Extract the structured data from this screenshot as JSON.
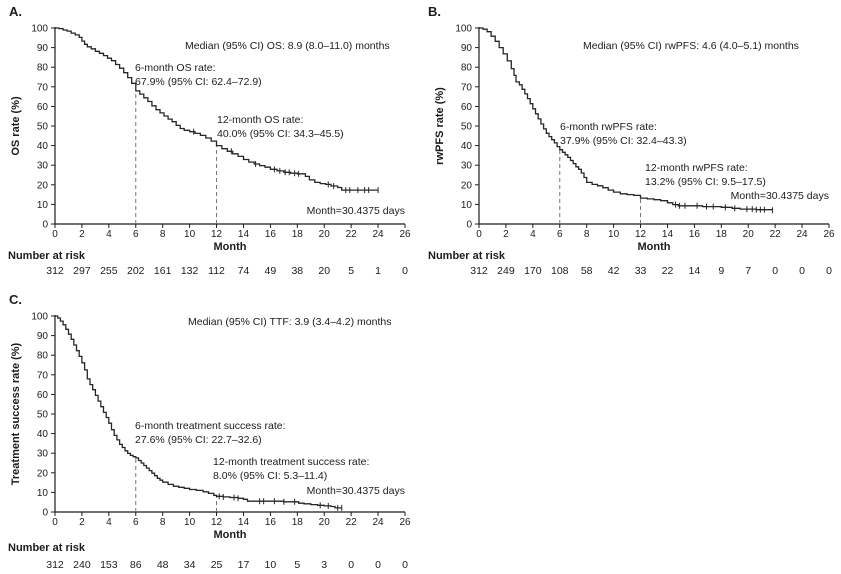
{
  "figure": {
    "colors": {
      "ink": "#1c1c1c",
      "curve": "#262626",
      "dash": "#757575"
    }
  },
  "chart_data": [
    {
      "type": "line",
      "panel_label": "A.",
      "ylabel": "OS rate (%)",
      "xlabel": "Month",
      "xlim": [
        0,
        26
      ],
      "ylim": [
        0,
        100
      ],
      "xtick_step": 2,
      "ytick_step": 10,
      "annotations": {
        "median": "Median (95% CI) OS: 8.9 (8.0–11.0) months",
        "rate6_line1": "6-month OS rate:",
        "rate6_line2": "67.9% (95% CI: 62.4–72.9)",
        "rate12_line1": "12-month OS rate:",
        "rate12_line2": "40.0% (95% CI: 34.3–45.5)",
        "month_note": "Month=30.4375 days"
      },
      "dashed_refs": [
        {
          "x": 6,
          "y_top": 67.9
        },
        {
          "x": 12,
          "y_top": 40.0
        }
      ],
      "at_risk_header": "Number at risk",
      "at_risk": [
        312,
        297,
        255,
        202,
        161,
        132,
        112,
        74,
        49,
        38,
        20,
        5,
        1,
        0
      ],
      "steps": [
        [
          0,
          100
        ],
        [
          0.3,
          99.7
        ],
        [
          0.6,
          99
        ],
        [
          0.9,
          98.4
        ],
        [
          1.2,
          97.4
        ],
        [
          1.5,
          96.5
        ],
        [
          1.8,
          95.2
        ],
        [
          2,
          93.3
        ],
        [
          2.2,
          91.7
        ],
        [
          2.4,
          90.4
        ],
        [
          2.7,
          89.4
        ],
        [
          3,
          88.1
        ],
        [
          3.3,
          87.1
        ],
        [
          3.6,
          85.9
        ],
        [
          3.9,
          84.6
        ],
        [
          4.2,
          83.3
        ],
        [
          4.5,
          81.4
        ],
        [
          4.8,
          79.5
        ],
        [
          5.1,
          77.2
        ],
        [
          5.4,
          74.7
        ],
        [
          5.7,
          71.8
        ],
        [
          6,
          67.9
        ],
        [
          6.3,
          66.3
        ],
        [
          6.6,
          64.4
        ],
        [
          6.9,
          62.5
        ],
        [
          7.2,
          60.3
        ],
        [
          7.5,
          58.3
        ],
        [
          7.8,
          56.7
        ],
        [
          8.1,
          55.1
        ],
        [
          8.4,
          53.5
        ],
        [
          8.7,
          52.2
        ],
        [
          9,
          50.3
        ],
        [
          9.3,
          48.7
        ],
        [
          9.6,
          47.8
        ],
        [
          10,
          47.1
        ],
        [
          10.4,
          46.2
        ],
        [
          10.8,
          45.2
        ],
        [
          11.2,
          43.9
        ],
        [
          11.6,
          42.3
        ],
        [
          12,
          40
        ],
        [
          12.4,
          38.4
        ],
        [
          12.8,
          37.1
        ],
        [
          13.2,
          35.8
        ],
        [
          13.6,
          34.5
        ],
        [
          14,
          32.9
        ],
        [
          14.4,
          31.6
        ],
        [
          14.8,
          30.6
        ],
        [
          15.2,
          29.8
        ],
        [
          15.6,
          29
        ],
        [
          16,
          27.9
        ],
        [
          16.5,
          27.1
        ],
        [
          17,
          26.4
        ],
        [
          17.5,
          25.9
        ],
        [
          18,
          25.6
        ],
        [
          18.6,
          24.3
        ],
        [
          18.9,
          22.5
        ],
        [
          19.3,
          21.2
        ],
        [
          19.7,
          20.6
        ],
        [
          20.1,
          20.2
        ],
        [
          20.5,
          19.4
        ],
        [
          21,
          18.6
        ],
        [
          21.3,
          17.3
        ],
        [
          24,
          17.3
        ]
      ],
      "censors": [
        10.3,
        13.1,
        14.9,
        16.3,
        16.7,
        17.1,
        17.4,
        17.8,
        18.1,
        20.3,
        20.7,
        21.6,
        21.9,
        22.5,
        23,
        23.3,
        24
      ]
    },
    {
      "type": "line",
      "panel_label": "B.",
      "ylabel": "rwPFS rate (%)",
      "xlabel": "Month",
      "xlim": [
        0,
        26
      ],
      "ylim": [
        0,
        100
      ],
      "xtick_step": 2,
      "ytick_step": 10,
      "annotations": {
        "median": "Median (95% CI) rwPFS: 4.6 (4.0–5.1) months",
        "rate6_line1": "6-month rwPFS rate:",
        "rate6_line2": "37.9% (95% CI: 32.4–43.3)",
        "rate12_line1": "12-month rwPFS rate:",
        "rate12_line2": "13.2% (95% CI: 9.5–17.5)",
        "month_note": "Month=30.4375 days"
      },
      "dashed_refs": [
        {
          "x": 6,
          "y_top": 37.9
        },
        {
          "x": 12,
          "y_top": 13.2
        }
      ],
      "at_risk_header": "Number at risk",
      "at_risk": [
        312,
        249,
        170,
        108,
        58,
        42,
        33,
        22,
        14,
        9,
        7,
        0,
        0,
        0
      ],
      "steps": [
        [
          0,
          100
        ],
        [
          0.3,
          99.4
        ],
        [
          0.6,
          98.1
        ],
        [
          0.9,
          95.8
        ],
        [
          1.2,
          93.2
        ],
        [
          1.5,
          90
        ],
        [
          1.8,
          86.8
        ],
        [
          2.1,
          83.2
        ],
        [
          2.4,
          79.3
        ],
        [
          2.6,
          75.8
        ],
        [
          2.75,
          72.5
        ],
        [
          3,
          71
        ],
        [
          3.2,
          68.7
        ],
        [
          3.4,
          66.4
        ],
        [
          3.6,
          64
        ],
        [
          3.8,
          61.4
        ],
        [
          4,
          58.8
        ],
        [
          4.2,
          56.2
        ],
        [
          4.4,
          53.6
        ],
        [
          4.6,
          51
        ],
        [
          4.8,
          48.5
        ],
        [
          5,
          46.3
        ],
        [
          5.2,
          44.6
        ],
        [
          5.4,
          43
        ],
        [
          5.6,
          41.4
        ],
        [
          5.8,
          39.5
        ],
        [
          6,
          37.9
        ],
        [
          6.2,
          36.6
        ],
        [
          6.4,
          35.3
        ],
        [
          6.6,
          34
        ],
        [
          6.8,
          32.4
        ],
        [
          7,
          30.8
        ],
        [
          7.2,
          29.2
        ],
        [
          7.4,
          27.9
        ],
        [
          7.6,
          26
        ],
        [
          7.8,
          23.7
        ],
        [
          8,
          21.2
        ],
        [
          8.4,
          20.2
        ],
        [
          8.8,
          19.5
        ],
        [
          9.2,
          18.5
        ],
        [
          9.6,
          17.3
        ],
        [
          10,
          16.3
        ],
        [
          10.5,
          15.4
        ],
        [
          11,
          15
        ],
        [
          11.5,
          14.6
        ],
        [
          12,
          13.2
        ],
        [
          12.5,
          12.8
        ],
        [
          13,
          12.4
        ],
        [
          13.5,
          11.9
        ],
        [
          14,
          10.8
        ],
        [
          14.4,
          9.9
        ],
        [
          14.8,
          9.3
        ],
        [
          16,
          9.3
        ],
        [
          16.6,
          8.9
        ],
        [
          17.4,
          8.9
        ],
        [
          18,
          8.5
        ],
        [
          18.8,
          8
        ],
        [
          19.4,
          7.6
        ],
        [
          20.6,
          7.3
        ],
        [
          21.8,
          7
        ]
      ],
      "censors": [
        14.6,
        14.9,
        15.3,
        16.2,
        16.9,
        17.4,
        18.3,
        19,
        19.9,
        20.3,
        20.6,
        20.9,
        21.2,
        21.8
      ]
    },
    {
      "type": "line",
      "panel_label": "C.",
      "ylabel": "Treatment success rate (%)",
      "xlabel": "Month",
      "xlim": [
        0,
        26
      ],
      "ylim": [
        0,
        100
      ],
      "xtick_step": 2,
      "ytick_step": 10,
      "annotations": {
        "median": "Median (95% CI) TTF: 3.9 (3.4–4.2) months",
        "rate6_line1": "6-month treatment success rate:",
        "rate6_line2": "27.6% (95% CI: 22.7–32.6)",
        "rate12_line1": "12-month treatment success rate:",
        "rate12_line2": "8.0% (95% CI: 5.3–11.4)",
        "month_note": "Month=30.4375 days"
      },
      "dashed_refs": [
        {
          "x": 6,
          "y_top": 27.6
        },
        {
          "x": 12,
          "y_top": 8.0
        }
      ],
      "at_risk_header": "Number at risk",
      "at_risk": [
        312,
        240,
        153,
        86,
        48,
        34,
        25,
        17,
        10,
        5,
        3,
        0,
        0,
        0
      ],
      "steps": [
        [
          0,
          100
        ],
        [
          0.2,
          99
        ],
        [
          0.4,
          97.4
        ],
        [
          0.6,
          95.5
        ],
        [
          0.8,
          93.2
        ],
        [
          1,
          90.7
        ],
        [
          1.2,
          88.1
        ],
        [
          1.4,
          85.2
        ],
        [
          1.6,
          82.3
        ],
        [
          1.8,
          79.4
        ],
        [
          2,
          76.1
        ],
        [
          2.2,
          72.5
        ],
        [
          2.4,
          67.9
        ],
        [
          2.6,
          65
        ],
        [
          2.8,
          62.4
        ],
        [
          3,
          59.5
        ],
        [
          3.2,
          56.6
        ],
        [
          3.4,
          53.7
        ],
        [
          3.6,
          50.8
        ],
        [
          3.8,
          48.2
        ],
        [
          4,
          45.3
        ],
        [
          4.2,
          42
        ],
        [
          4.4,
          39.1
        ],
        [
          4.6,
          36.8
        ],
        [
          4.8,
          34.5
        ],
        [
          5,
          32.9
        ],
        [
          5.2,
          31.2
        ],
        [
          5.4,
          29.9
        ],
        [
          5.6,
          28.9
        ],
        [
          5.8,
          28.2
        ],
        [
          6,
          27.6
        ],
        [
          6.2,
          26.3
        ],
        [
          6.4,
          25
        ],
        [
          6.6,
          23.7
        ],
        [
          6.8,
          22.4
        ],
        [
          7,
          21.1
        ],
        [
          7.2,
          19.8
        ],
        [
          7.4,
          18.5
        ],
        [
          7.6,
          17.2
        ],
        [
          7.8,
          16.2
        ],
        [
          8,
          15.2
        ],
        [
          8.4,
          14.1
        ],
        [
          8.8,
          13.1
        ],
        [
          9.2,
          12.6
        ],
        [
          9.6,
          12.1
        ],
        [
          10,
          11.5
        ],
        [
          10.5,
          11
        ],
        [
          11,
          10.3
        ],
        [
          11.4,
          9.5
        ],
        [
          11.8,
          8.5
        ],
        [
          12,
          8
        ],
        [
          12.5,
          7.7
        ],
        [
          13,
          7.4
        ],
        [
          13.6,
          7
        ],
        [
          14,
          6.5
        ],
        [
          14.3,
          5.5
        ],
        [
          16,
          5.5
        ],
        [
          17,
          5.2
        ],
        [
          17.9,
          5.2
        ],
        [
          18.1,
          4.5
        ],
        [
          18.5,
          4.2
        ],
        [
          19,
          3.8
        ],
        [
          19.5,
          3.4
        ],
        [
          20,
          3.1
        ],
        [
          20.5,
          2.8
        ],
        [
          20.8,
          2.1
        ],
        [
          21.3,
          2.1
        ]
      ],
      "censors": [
        12.2,
        12.5,
        13.3,
        13.6,
        15.2,
        15.5,
        16.3,
        17,
        17.8,
        19.7,
        20.3,
        21,
        21.3
      ]
    }
  ]
}
